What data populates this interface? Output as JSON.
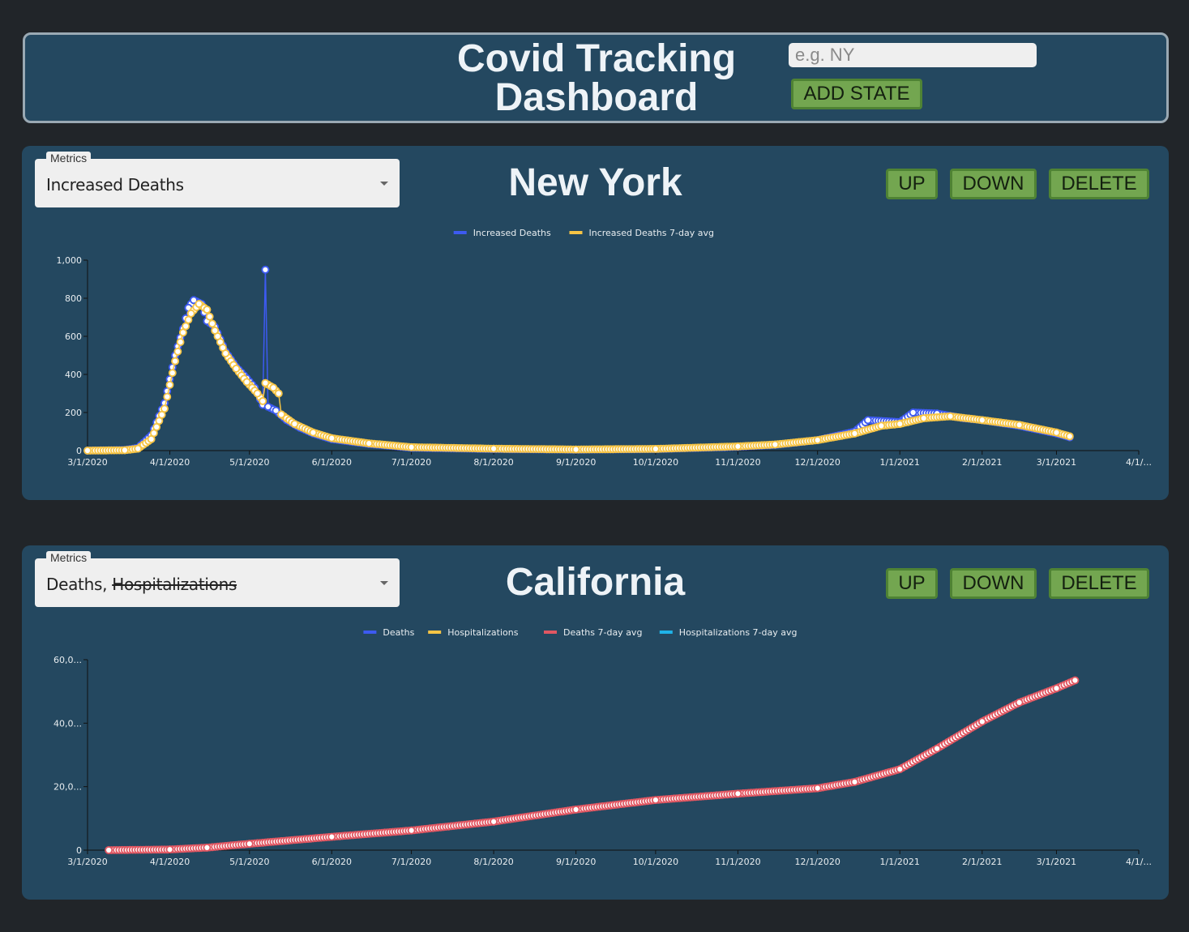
{
  "header": {
    "title_line1": "Covid Tracking",
    "title_line2": "Dashboard",
    "input_placeholder": "e.g. NY",
    "add_button": "ADD STATE"
  },
  "colors": {
    "background": "#212529",
    "panel": "#244860",
    "button": "#73a650",
    "series_blue": "#3d5af1",
    "series_yellow": "#f6c445",
    "series_red": "#e15762",
    "series_cyan": "#1fb3e8"
  },
  "panels": [
    {
      "metrics_label": "Metrics",
      "metrics_value": "Increased Deaths",
      "metrics_value_struck": "",
      "state": "New York",
      "up": "UP",
      "down": "DOWN",
      "delete": "DELETE"
    },
    {
      "metrics_label": "Metrics",
      "metrics_value": "Deaths, ",
      "metrics_value_struck": "Hospitalizations",
      "state": "California",
      "up": "UP",
      "down": "DOWN",
      "delete": "DELETE"
    }
  ],
  "chart_data": [
    {
      "type": "line",
      "x_ticks": [
        "3/1/2020",
        "4/1/2020",
        "5/1/2020",
        "6/1/2020",
        "7/1/2020",
        "8/1/2020",
        "9/1/2020",
        "10/1/2020",
        "11/1/2020",
        "12/1/2020",
        "1/1/2021",
        "2/1/2021",
        "3/1/2021",
        "4/1/..."
      ],
      "y_ticks": [
        "0",
        "200",
        "400",
        "600",
        "800",
        "1,000"
      ],
      "ylim": [
        0,
        1000
      ],
      "legend_position": "top-center",
      "series": [
        {
          "name": "Increased Deaths",
          "color": "#3d5af1",
          "points": [
            [
              "2020-03-01",
              0
            ],
            [
              "2020-03-15",
              3
            ],
            [
              "2020-03-20",
              15
            ],
            [
              "2020-03-25",
              80
            ],
            [
              "2020-03-30",
              250
            ],
            [
              "2020-04-03",
              500
            ],
            [
              "2020-04-06",
              640
            ],
            [
              "2020-04-08",
              750
            ],
            [
              "2020-04-10",
              790
            ],
            [
              "2020-04-13",
              770
            ],
            [
              "2020-04-15",
              680
            ],
            [
              "2020-04-18",
              650
            ],
            [
              "2020-04-22",
              520
            ],
            [
              "2020-04-26",
              440
            ],
            [
              "2020-04-30",
              380
            ],
            [
              "2020-05-03",
              330
            ],
            [
              "2020-05-06",
              240
            ],
            [
              "2020-05-07",
              950
            ],
            [
              "2020-05-08",
              230
            ],
            [
              "2020-05-11",
              210
            ],
            [
              "2020-05-15",
              160
            ],
            [
              "2020-05-20",
              120
            ],
            [
              "2020-05-25",
              90
            ],
            [
              "2020-06-01",
              60
            ],
            [
              "2020-06-15",
              35
            ],
            [
              "2020-07-01",
              15
            ],
            [
              "2020-08-01",
              8
            ],
            [
              "2020-09-01",
              5
            ],
            [
              "2020-10-01",
              8
            ],
            [
              "2020-11-01",
              20
            ],
            [
              "2020-11-15",
              30
            ],
            [
              "2020-12-01",
              55
            ],
            [
              "2020-12-15",
              100
            ],
            [
              "2020-12-20",
              160
            ],
            [
              "2021-01-01",
              150
            ],
            [
              "2021-01-06",
              200
            ],
            [
              "2021-01-15",
              195
            ],
            [
              "2021-01-25",
              170
            ],
            [
              "2021-02-01",
              160
            ],
            [
              "2021-02-15",
              130
            ],
            [
              "2021-03-01",
              90
            ],
            [
              "2021-03-06",
              70
            ]
          ]
        },
        {
          "name": "Increased Deaths 7-day avg",
          "color": "#f6c445",
          "points": [
            [
              "2020-03-01",
              0
            ],
            [
              "2020-03-15",
              2
            ],
            [
              "2020-03-20",
              10
            ],
            [
              "2020-03-25",
              60
            ],
            [
              "2020-03-30",
              220
            ],
            [
              "2020-04-03",
              470
            ],
            [
              "2020-04-06",
              620
            ],
            [
              "2020-04-09",
              720
            ],
            [
              "2020-04-12",
              770
            ],
            [
              "2020-04-15",
              740
            ],
            [
              "2020-04-18",
              630
            ],
            [
              "2020-04-22",
              510
            ],
            [
              "2020-04-26",
              430
            ],
            [
              "2020-04-30",
              360
            ],
            [
              "2020-05-04",
              300
            ],
            [
              "2020-05-06",
              260
            ],
            [
              "2020-05-07",
              355
            ],
            [
              "2020-05-10",
              330
            ],
            [
              "2020-05-12",
              300
            ],
            [
              "2020-05-13",
              190
            ],
            [
              "2020-05-18",
              140
            ],
            [
              "2020-05-25",
              95
            ],
            [
              "2020-06-01",
              65
            ],
            [
              "2020-06-15",
              38
            ],
            [
              "2020-07-01",
              18
            ],
            [
              "2020-08-01",
              10
            ],
            [
              "2020-09-01",
              6
            ],
            [
              "2020-10-01",
              9
            ],
            [
              "2020-11-01",
              22
            ],
            [
              "2020-11-15",
              32
            ],
            [
              "2020-12-01",
              55
            ],
            [
              "2020-12-15",
              90
            ],
            [
              "2020-12-25",
              130
            ],
            [
              "2021-01-01",
              140
            ],
            [
              "2021-01-10",
              170
            ],
            [
              "2021-01-20",
              180
            ],
            [
              "2021-02-01",
              160
            ],
            [
              "2021-02-15",
              135
            ],
            [
              "2021-03-01",
              95
            ],
            [
              "2021-03-06",
              75
            ]
          ]
        }
      ]
    },
    {
      "type": "line",
      "x_ticks": [
        "3/1/2020",
        "4/1/2020",
        "5/1/2020",
        "6/1/2020",
        "7/1/2020",
        "8/1/2020",
        "9/1/2020",
        "10/1/2020",
        "11/1/2020",
        "12/1/2020",
        "1/1/2021",
        "2/1/2021",
        "3/1/2021",
        "4/1/..."
      ],
      "y_ticks": [
        "0",
        "20,0...",
        "40,0...",
        "60,0..."
      ],
      "ylim": [
        0,
        60000
      ],
      "legend_position": "top-center",
      "series": [
        {
          "name": "Deaths",
          "color": "#3d5af1",
          "points": []
        },
        {
          "name": "Hospitalizations",
          "color": "#f6c445",
          "points": []
        },
        {
          "name": "Deaths 7-day avg",
          "color": "#e15762",
          "points": [
            [
              "2020-03-09",
              0
            ],
            [
              "2020-04-01",
              200
            ],
            [
              "2020-04-15",
              800
            ],
            [
              "2020-05-01",
              2000
            ],
            [
              "2020-06-01",
              4200
            ],
            [
              "2020-07-01",
              6200
            ],
            [
              "2020-08-01",
              9000
            ],
            [
              "2020-09-01",
              12800
            ],
            [
              "2020-10-01",
              15800
            ],
            [
              "2020-11-01",
              17800
            ],
            [
              "2020-12-01",
              19500
            ],
            [
              "2020-12-15",
              21500
            ],
            [
              "2021-01-01",
              25500
            ],
            [
              "2021-01-15",
              32000
            ],
            [
              "2021-02-01",
              40500
            ],
            [
              "2021-02-15",
              46500
            ],
            [
              "2021-03-01",
              51000
            ],
            [
              "2021-03-08",
              53500
            ]
          ]
        },
        {
          "name": "Hospitalizations 7-day avg",
          "color": "#1fb3e8",
          "points": []
        }
      ]
    }
  ]
}
